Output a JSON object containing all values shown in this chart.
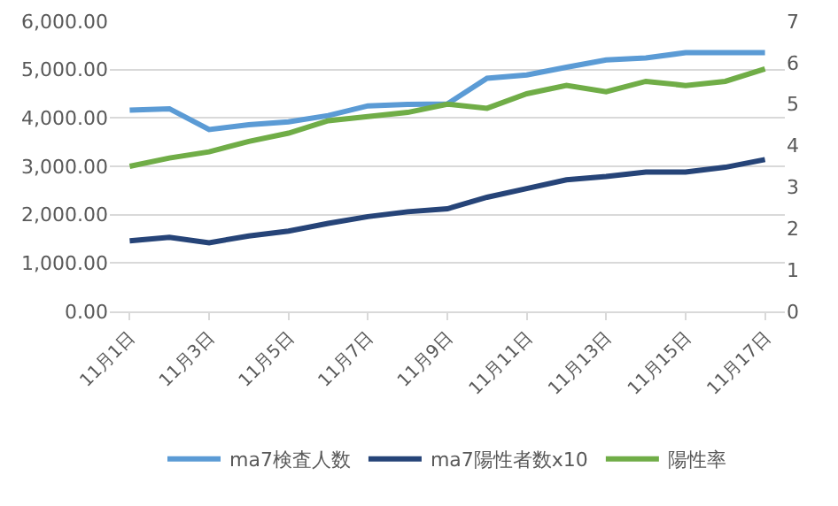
{
  "chart_data": {
    "type": "line",
    "categories": [
      "11月1日",
      null,
      "11月3日",
      null,
      "11月5日",
      null,
      "11月7日",
      null,
      "11月9日",
      null,
      "11月11日",
      null,
      "11月13日",
      null,
      "11月15日",
      null,
      "11月17日"
    ],
    "series": [
      {
        "name": "ma7検査人数",
        "color": "#5b9bd5",
        "values": [
          4160,
          4190,
          3760,
          3860,
          3920,
          4050,
          4250,
          4280,
          4290,
          4820,
          4890,
          5050,
          5200,
          5240,
          5350,
          5350,
          5350
        ]
      },
      {
        "name": "ma7陽性者数x10",
        "color": "#264478",
        "values": [
          1460,
          1530,
          1420,
          1560,
          1660,
          1820,
          1960,
          2060,
          2120,
          2360,
          2540,
          2720,
          2790,
          2880,
          2880,
          2980,
          3140
        ]
      },
      {
        "name": "陽性率",
        "color": "#70ad47",
        "axis": "y2",
        "values": [
          3.5,
          3.7,
          3.85,
          4.1,
          4.3,
          4.6,
          4.7,
          4.8,
          5.0,
          4.9,
          5.25,
          5.45,
          5.3,
          5.55,
          5.45,
          5.55,
          5.85
        ]
      }
    ],
    "ylim": [
      0,
      6000
    ],
    "yticks": [
      {
        "value": 0,
        "label": "0.00"
      },
      {
        "value": 1000,
        "label": "1,000.00"
      },
      {
        "value": 2000,
        "label": "2,000.00"
      },
      {
        "value": 3000,
        "label": "3,000.00"
      },
      {
        "value": 4000,
        "label": "4,000.00"
      },
      {
        "value": 5000,
        "label": "5,000.00"
      },
      {
        "value": 6000,
        "label": "6,000.00"
      }
    ],
    "y2lim": [
      0,
      7
    ],
    "y2ticks": [
      0,
      1,
      2,
      3,
      4,
      5,
      6,
      7
    ],
    "grid": "y",
    "legend": "bottom",
    "marker": "none",
    "line_style": "solid"
  }
}
